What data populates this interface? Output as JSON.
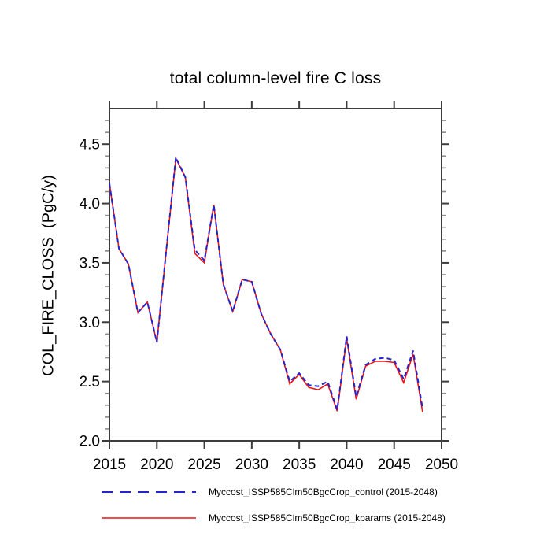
{
  "page": {
    "background": "#ffffff"
  },
  "chart_data": {
    "type": "line",
    "title": "total column-level fire C loss",
    "ylabel": "COL_FIRE_CLOSS  (PgC/y)",
    "xlabel": "",
    "x": [
      2015,
      2016,
      2017,
      2018,
      2019,
      2020,
      2021,
      2022,
      2023,
      2024,
      2025,
      2026,
      2027,
      2028,
      2029,
      2030,
      2031,
      2032,
      2033,
      2034,
      2035,
      2036,
      2037,
      2038,
      2039,
      2040,
      2041,
      2042,
      2043,
      2044,
      2045,
      2046,
      2047,
      2048
    ],
    "series": [
      {
        "name": "Myccost_ISSP585Clm50BgcCrop_control (2015-2048)",
        "color": "#2424cc",
        "style": "dashed",
        "values": [
          4.17,
          3.62,
          3.49,
          3.08,
          3.17,
          2.83,
          3.61,
          4.39,
          4.22,
          3.61,
          3.52,
          3.99,
          3.32,
          3.09,
          3.36,
          3.34,
          3.07,
          2.9,
          2.77,
          2.5,
          2.57,
          2.47,
          2.46,
          2.5,
          2.26,
          2.88,
          2.37,
          2.64,
          2.69,
          2.7,
          2.68,
          2.52,
          2.76,
          2.27
        ]
      },
      {
        "name": "Myccost_ISSP585Clm50BgcCrop_kparams (2015-2048)",
        "color": "#ee1111",
        "style": "solid",
        "values": [
          4.17,
          3.62,
          3.49,
          3.08,
          3.17,
          2.83,
          3.61,
          4.38,
          4.22,
          3.58,
          3.5,
          3.99,
          3.32,
          3.09,
          3.36,
          3.34,
          3.07,
          2.9,
          2.77,
          2.48,
          2.56,
          2.45,
          2.43,
          2.48,
          2.25,
          2.86,
          2.35,
          2.63,
          2.67,
          2.67,
          2.66,
          2.49,
          2.73,
          2.24
        ]
      }
    ],
    "xlim": [
      2015,
      2050
    ],
    "ylim": [
      2.0,
      4.8
    ],
    "x_major_ticks": [
      2015,
      2020,
      2025,
      2030,
      2035,
      2040,
      2045,
      2050
    ],
    "y_major_ticks": [
      2.0,
      2.5,
      3.0,
      3.5,
      4.0,
      4.5
    ],
    "y_minor_step": 0.1,
    "grid": false,
    "legend_position": "bottom",
    "frame_color": "#3d3d3d",
    "tick_label_color": "#000000"
  }
}
